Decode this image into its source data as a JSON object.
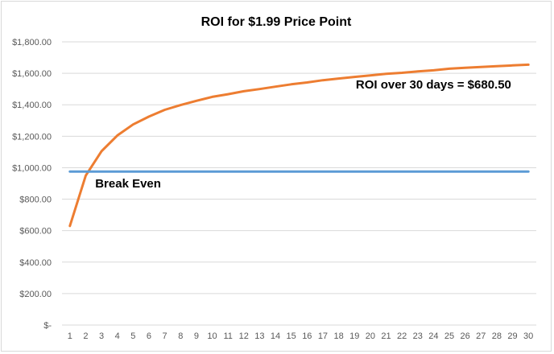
{
  "chart_data": {
    "type": "line",
    "title": "ROI for $1.99 Price Point",
    "xlabel": "",
    "ylabel": "",
    "x": [
      1,
      2,
      3,
      4,
      5,
      6,
      7,
      8,
      9,
      10,
      11,
      12,
      13,
      14,
      15,
      16,
      17,
      18,
      19,
      20,
      21,
      22,
      23,
      24,
      25,
      26,
      27,
      28,
      29,
      30
    ],
    "ylim": [
      0,
      1800
    ],
    "y_ticks": [
      0,
      200,
      400,
      600,
      800,
      1000,
      1200,
      1400,
      1600,
      1800
    ],
    "y_tick_labels": [
      "$-",
      "$200.00",
      "$400.00",
      "$600.00",
      "$800.00",
      "$1,000.00",
      "$1,200.00",
      "$1,400.00",
      "$1,600.00",
      "$1,800.00"
    ],
    "grid": true,
    "legend": "none",
    "series": [
      {
        "color": "#ed7d31",
        "values": [
          630,
          950,
          1105,
          1205,
          1275,
          1325,
          1368,
          1398,
          1425,
          1450,
          1467,
          1486,
          1500,
          1515,
          1530,
          1542,
          1556,
          1567,
          1577,
          1587,
          1597,
          1603,
          1612,
          1619,
          1629,
          1635,
          1640,
          1645,
          1650,
          1655
        ]
      },
      {
        "color": "#5b9bd5",
        "values": [
          975,
          975,
          975,
          975,
          975,
          975,
          975,
          975,
          975,
          975,
          975,
          975,
          975,
          975,
          975,
          975,
          975,
          975,
          975,
          975,
          975,
          975,
          975,
          975,
          975,
          975,
          975,
          975,
          975,
          975
        ]
      }
    ],
    "annotations": [
      {
        "text": "ROI over 30 days = $680.50",
        "x": 24,
        "y": 1530,
        "anchor": "middle"
      },
      {
        "text": "Break Even",
        "x": 2.6,
        "y": 900,
        "anchor": "start"
      }
    ]
  }
}
